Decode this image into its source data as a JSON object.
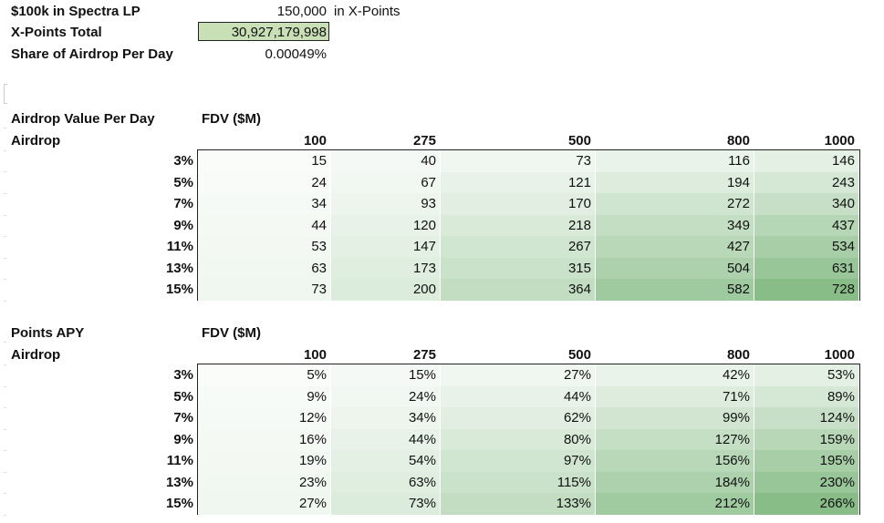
{
  "summary": {
    "lp_label": "$100k in Spectra LP",
    "lp_value": "150,000",
    "lp_unit": "in X-Points",
    "total_label": "X-Points Total",
    "total_value": "30,927,179,998",
    "share_label": "Share of Airdrop Per Day",
    "share_value": "0.00049%"
  },
  "columns": [
    "100",
    "275",
    "500",
    "800",
    "1000"
  ],
  "rows": [
    "3%",
    "5%",
    "7%",
    "9%",
    "11%",
    "13%",
    "15%"
  ],
  "table1": {
    "title": "Airdrop Value Per Day",
    "header": "FDV ($M)",
    "row_axis": "Airdrop",
    "values": [
      [
        "15",
        "40",
        "73",
        "116",
        "146"
      ],
      [
        "24",
        "67",
        "121",
        "194",
        "243"
      ],
      [
        "34",
        "93",
        "170",
        "272",
        "340"
      ],
      [
        "44",
        "120",
        "218",
        "349",
        "437"
      ],
      [
        "53",
        "147",
        "267",
        "427",
        "534"
      ],
      [
        "63",
        "173",
        "315",
        "504",
        "631"
      ],
      [
        "73",
        "200",
        "364",
        "582",
        "728"
      ]
    ]
  },
  "table2": {
    "title": "Points APY",
    "header": "FDV ($M)",
    "row_axis": "Airdrop",
    "values": [
      [
        "5%",
        "15%",
        "27%",
        "42%",
        "53%"
      ],
      [
        "9%",
        "24%",
        "44%",
        "71%",
        "89%"
      ],
      [
        "12%",
        "34%",
        "62%",
        "99%",
        "124%"
      ],
      [
        "16%",
        "44%",
        "80%",
        "127%",
        "159%"
      ],
      [
        "19%",
        "54%",
        "97%",
        "156%",
        "195%"
      ],
      [
        "23%",
        "63%",
        "115%",
        "184%",
        "230%"
      ],
      [
        "27%",
        "73%",
        "133%",
        "212%",
        "266%"
      ]
    ]
  },
  "colors": {
    "heat_low": "#ffffff",
    "heat_high": "#86bc86",
    "highlight": "#c9dfb6"
  }
}
